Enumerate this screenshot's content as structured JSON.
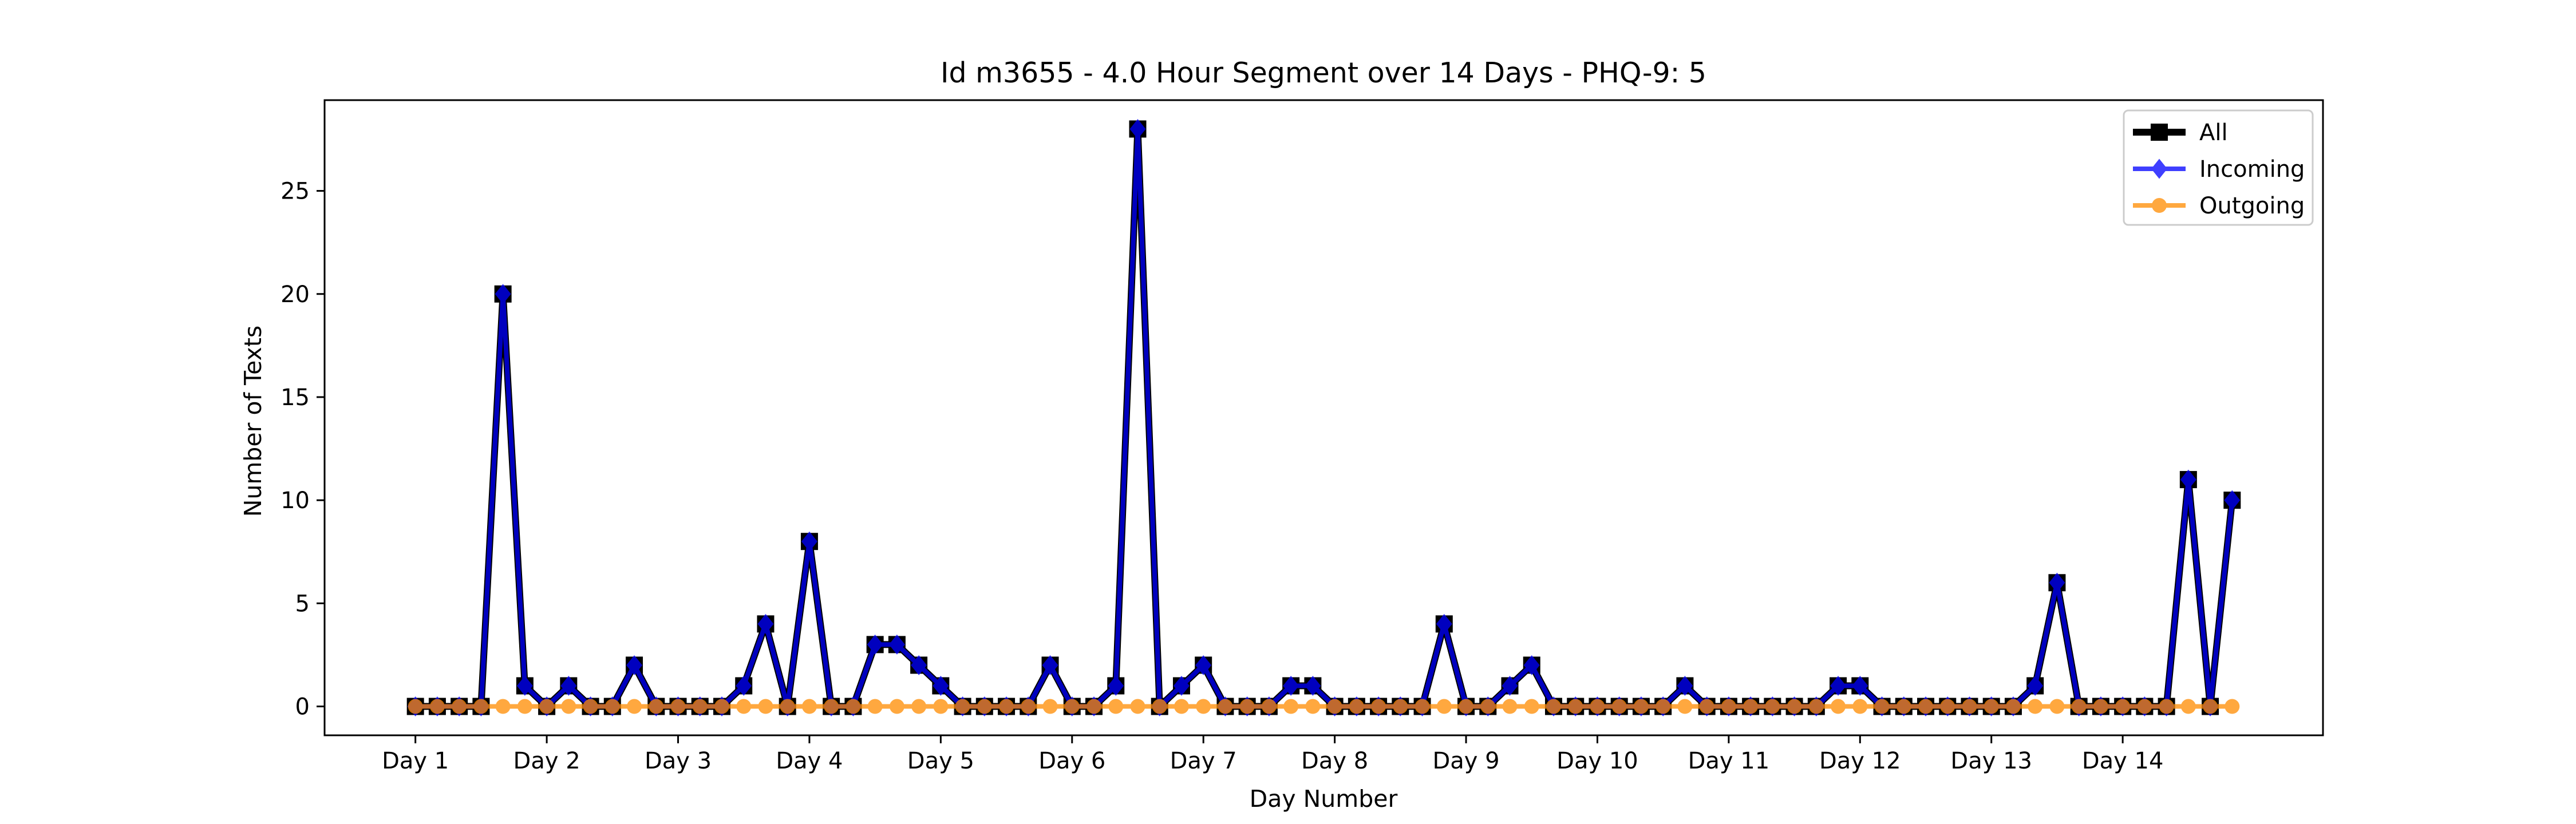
{
  "chart_data": {
    "type": "line",
    "title": "Id m3655 - 4.0 Hour Segment over 14 Days - PHQ-9: 5",
    "xlabel": "Day Number",
    "ylabel": "Number of Texts",
    "xticks": [
      "Day 1",
      "Day 2",
      "Day 3",
      "Day 4",
      "Day 5",
      "Day 6",
      "Day 7",
      "Day 8",
      "Day 9",
      "Day 10",
      "Day 11",
      "Day 12",
      "Day 13",
      "Day 14"
    ],
    "yticks": [
      0,
      5,
      10,
      15,
      20,
      25
    ],
    "ylim": [
      -1.4,
      29.4
    ],
    "xlim": [
      -4.15,
      87.15
    ],
    "grid": false,
    "legend_position": "top-right",
    "series": [
      {
        "name": "All",
        "color": "#000000",
        "marker": "square",
        "values": [
          0,
          0,
          0,
          0,
          20,
          1,
          0,
          1,
          0,
          0,
          2,
          0,
          0,
          0,
          0,
          1,
          4,
          0,
          8,
          0,
          0,
          3,
          3,
          2,
          1,
          0,
          0,
          0,
          0,
          2,
          0,
          0,
          1,
          28,
          0,
          1,
          2,
          0,
          0,
          0,
          1,
          1,
          0,
          0,
          0,
          0,
          0,
          4,
          0,
          0,
          1,
          2,
          0,
          0,
          0,
          0,
          0,
          0,
          1,
          0,
          0,
          0,
          0,
          0,
          0,
          1,
          1,
          0,
          0,
          0,
          0,
          0,
          0,
          0,
          1,
          6,
          0,
          0,
          0,
          0,
          0,
          11,
          0,
          10
        ]
      },
      {
        "name": "Incoming",
        "color": "#0000ff",
        "marker": "diamond",
        "values": [
          0,
          0,
          0,
          0,
          20,
          1,
          0,
          1,
          0,
          0,
          2,
          0,
          0,
          0,
          0,
          1,
          4,
          0,
          8,
          0,
          0,
          3,
          3,
          2,
          1,
          0,
          0,
          0,
          0,
          2,
          0,
          0,
          1,
          28,
          0,
          1,
          2,
          0,
          0,
          0,
          1,
          1,
          0,
          0,
          0,
          0,
          0,
          4,
          0,
          0,
          1,
          2,
          0,
          0,
          0,
          0,
          0,
          0,
          1,
          0,
          0,
          0,
          0,
          0,
          0,
          1,
          1,
          0,
          0,
          0,
          0,
          0,
          0,
          0,
          1,
          6,
          0,
          0,
          0,
          0,
          0,
          11,
          0,
          10
        ]
      },
      {
        "name": "Outgoing",
        "color": "#ff8c00",
        "marker": "circle",
        "values": [
          0,
          0,
          0,
          0,
          0,
          0,
          0,
          0,
          0,
          0,
          0,
          0,
          0,
          0,
          0,
          0,
          0,
          0,
          0,
          0,
          0,
          0,
          0,
          0,
          0,
          0,
          0,
          0,
          0,
          0,
          0,
          0,
          0,
          0,
          0,
          0,
          0,
          0,
          0,
          0,
          0,
          0,
          0,
          0,
          0,
          0,
          0,
          0,
          0,
          0,
          0,
          0,
          0,
          0,
          0,
          0,
          0,
          0,
          0,
          0,
          0,
          0,
          0,
          0,
          0,
          0,
          0,
          0,
          0,
          0,
          0,
          0,
          0,
          0,
          0,
          0,
          0,
          0,
          0,
          0,
          0,
          0,
          0,
          0
        ]
      }
    ]
  }
}
